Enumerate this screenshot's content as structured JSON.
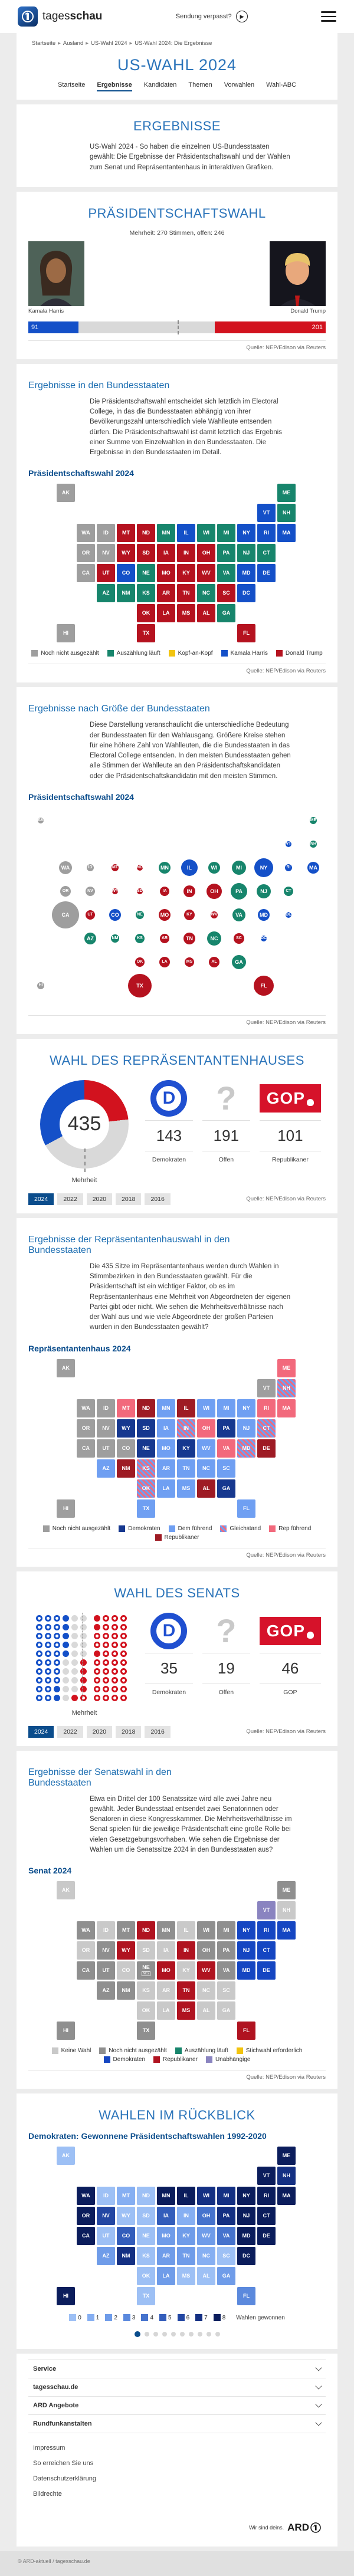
{
  "colors": {
    "accent_blue": "#0b4d8c",
    "heading_blue": "#2b74ba",
    "subheading_blue": "#1b6db1",
    "harris_blue": "#1450c8",
    "trump_red": "#d2121e",
    "open_gray": "#d9d9d9",
    "dem_logo_blue": "#1f4fd0",
    "gop_red": "#d6122a"
  },
  "header": {
    "brand_regular": "tages",
    "brand_bold": "schau",
    "sendung": "Sendung verpasst?",
    "breadcrumb": [
      "Startseite",
      "Ausland",
      "US-Wahl 2024",
      "US-Wahl 2024: Die Ergebnisse"
    ],
    "title": "US-WAHL 2024",
    "nav": [
      {
        "label": "Startseite",
        "active": false
      },
      {
        "label": "Ergebnisse",
        "active": true
      },
      {
        "label": "Kandidaten",
        "active": false
      },
      {
        "label": "Themen",
        "active": false
      },
      {
        "label": "Vorwahlen",
        "active": false
      },
      {
        "label": "Wahl-ABC",
        "active": false
      }
    ]
  },
  "intro": {
    "title": "ERGEBNISSE",
    "text": "US-Wahl 2024 - So haben die einzelnen US-Bundesstaaten gewählt: Die Ergebnisse der Präsidentschaftswahl und der Wahlen zum Senat und Repräsentantenhaus in interaktiven Grafiken."
  },
  "president": {
    "title": "PRÄSIDENTSCHAFTSWAHL",
    "majority_note": "Mehrheit: 270 Stimmen, offen: 246",
    "harris_name": "Kamala Harris",
    "trump_name": "Donald Trump",
    "source": "Quelle: NEP/Edison via Reuters"
  },
  "states_section": {
    "heading": "Ergebnisse in den Bundesstaaten",
    "text": "Die Präsidentschaftswahl entscheidet sich letztlich im Electoral College, in das die Bundesstaaten abhängig von ihrer Bevölkerungszahl unterschiedlich viele Wahlleute entsenden dürfen. Die Präsidentschaftswahl ist damit letztlich das Ergebnis einer Summe von Einzelwahlen in den Bundesstaaten. Die Ergebnisse in den Bundesstaaten im Detail.",
    "chart_title": "Präsidentschaftswahl 2024",
    "source": "Quelle: NEP/Edison via Reuters"
  },
  "bubble_section": {
    "heading": "Ergebnisse nach Größe der Bundesstaaten",
    "text": "Diese Darstellung veranschaulicht die unterschiedliche Bedeutung der Bundesstaaten für den Wahlausgang. Größere Kreise stehen für eine höhere Zahl von Wahlleuten, die die Bundesstaaten in das Electoral College entsenden. In den meisten Bundesstaaten gehen alle Stimmen der Wahlleute an den Präsidentschaftskandidaten oder die Präsidentschaftskandidatin mit den meisten Stimmen.",
    "chart_title": "Präsidentschaftswahl 2024",
    "source": "Quelle: NEP/Edison via Reuters"
  },
  "house": {
    "title": "WAHL DES REPRÄSENTANTENHAUSES",
    "majority_label": "Mehrheit",
    "years": [
      "2024",
      "2022",
      "2020",
      "2018",
      "2016"
    ],
    "active_year": "2024",
    "source": "Quelle: NEP/Edison via Reuters"
  },
  "house_map_section": {
    "heading": "Ergebnisse der Repräsentantenhauswahl in den Bundesstaaten",
    "text": "Die 435 Sitze im Repräsentantenhaus werden durch Wahlen in Stimmbezirken in den Bundesstaaten gewählt. Für die Präsidentschaft ist ein wichtiger Faktor, ob es im Repräsentantenhaus eine Mehrheit von Abgeordneten der eigenen Partei gibt oder nicht. Wie sehen die Mehrheitsverhältnisse nach der Wahl aus und wie viele Abgeordnete der großen Parteien wurden in den Bundesstaaten gewählt?",
    "chart_title": "Repräsentantenhaus 2024",
    "source": "Quelle: NEP/Edison via Reuters"
  },
  "senate": {
    "title": "WAHL DES SENATS",
    "majority_label": "Mehrheit",
    "years": [
      "2024",
      "2022",
      "2020",
      "2018",
      "2016"
    ],
    "active_year": "2024",
    "source": "Quelle: NEP/Edison via Reuters"
  },
  "senate_map_section": {
    "heading": "Ergebnisse der Senatswahl in den Bundesstaaten",
    "text": "Etwa ein Drittel der 100 Senatssitze wird alle zwei Jahre neu gewählt. Jeder Bundesstaat entsendet zwei Senatorinnen oder Senatoren in diese Kongresskammer. Die Mehrheitsverhältnisse im Senat spielen für die jeweilige Präsidentschaft eine große Rolle bei vielen Gesetzgebungsvorhaben. Wie sehen die Ergebnisse der Wahlen um die Senatssitze 2024 in den Bundesstaaten aus?",
    "chart_title": "Senat 2024",
    "source": "Quelle: NEP/Edison via Reuters"
  },
  "retro": {
    "title": "WAHLEN IM RÜCKBLICK",
    "chart_title": "Demokraten: Gewonnene Präsidentschaftswahlen 1992-2020",
    "legend_label": "Wahlen gewonnen",
    "pagination": {
      "count": 10,
      "active": 0
    }
  },
  "footer": {
    "accordions": [
      "Service",
      "tagesschau.de",
      "ARD Angebote",
      "Rundfunkanstalten"
    ],
    "links": [
      "Impressum",
      "So erreichen Sie uns",
      "Datenschutzerklärung",
      "Bildrechte"
    ],
    "slogan": "Wir sind deins.",
    "ard": "ARD",
    "copyright": "© ARD-aktuell / tagesschau.de"
  },
  "chart_data": [
    {
      "id": "president-bar",
      "type": "bar",
      "title": "Präsidentschaftswahl Electoral College",
      "series": [
        {
          "name": "Kamala Harris",
          "value": 91,
          "color": "#1450c8"
        },
        {
          "name": "offen",
          "value": 246,
          "color": "#d9d9d9"
        },
        {
          "name": "Donald Trump",
          "value": 201,
          "color": "#d2121e"
        }
      ],
      "majority": 270,
      "total": 538
    },
    {
      "id": "president-map",
      "type": "map",
      "title": "Präsidentschaftswahl 2024",
      "colors": {
        "open": "#9e9e9e",
        "counting": "#17856c",
        "tie": "#f2c40f",
        "harris": "#1450c8",
        "trump": "#b5121f"
      },
      "legend": [
        {
          "key": "open",
          "label": "Noch nicht ausgezählt"
        },
        {
          "key": "counting",
          "label": "Auszählung läuft"
        },
        {
          "key": "tie",
          "label": "Kopf-an-Kopf"
        },
        {
          "key": "harris",
          "label": "Kamala Harris"
        },
        {
          "key": "trump",
          "label": "Donald Trump"
        }
      ],
      "states": {
        "WA": "open",
        "OR": "open",
        "ID": "open",
        "NV": "open",
        "CA": "open",
        "AK": "open",
        "HI": "open",
        "MN": "counting",
        "WI": "counting",
        "MI": "counting",
        "PA": "counting",
        "NE": "counting",
        "KS": "counting",
        "AZ": "counting",
        "NM": "counting",
        "VA": "counting",
        "NC": "counting",
        "GA": "counting",
        "ME": "counting",
        "NH": "counting",
        "CT": "counting",
        "NJ": "counting",
        "CO": "harris",
        "IL": "harris",
        "NY": "harris",
        "VT": "harris",
        "MA": "harris",
        "RI": "harris",
        "DE": "harris",
        "MD": "harris",
        "DC": "harris",
        "MT": "trump",
        "ND": "trump",
        "SD": "trump",
        "WY": "trump",
        "UT": "trump",
        "IA": "trump",
        "MO": "trump",
        "OK": "trump",
        "AR": "trump",
        "TX": "trump",
        "LA": "trump",
        "MS": "trump",
        "AL": "trump",
        "TN": "trump",
        "KY": "trump",
        "IN": "trump",
        "OH": "trump",
        "WV": "trump",
        "SC": "trump",
        "FL": "trump"
      }
    },
    {
      "id": "president-cartogram",
      "type": "bubble-map",
      "title": "Präsidentschaftswahl 2024",
      "colors": {
        "open": "#9e9e9e",
        "counting": "#17856c",
        "tie": "#f2c40f",
        "harris": "#1450c8",
        "trump": "#b5121f"
      },
      "legend": [
        {
          "key": "open",
          "label": "Noch nicht ausgezählt"
        },
        {
          "key": "counting",
          "label": "Auszählung läuft"
        },
        {
          "key": "tie",
          "label": "Kopf-an-Kopf"
        },
        {
          "key": "harris",
          "label": "Kamala Harris"
        },
        {
          "key": "trump",
          "label": "Donald Trump"
        }
      ],
      "electoral_votes": {
        "AL": 9,
        "AK": 3,
        "AZ": 11,
        "AR": 6,
        "CA": 54,
        "CO": 10,
        "CT": 7,
        "DE": 3,
        "DC": 3,
        "FL": 30,
        "GA": 16,
        "HI": 4,
        "ID": 4,
        "IL": 19,
        "IN": 11,
        "IA": 6,
        "KS": 6,
        "KY": 8,
        "LA": 8,
        "ME": 4,
        "MD": 10,
        "MA": 11,
        "MI": 15,
        "MN": 10,
        "MS": 6,
        "MO": 10,
        "MT": 4,
        "NE": 5,
        "NV": 6,
        "NH": 4,
        "NJ": 14,
        "NM": 5,
        "NY": 28,
        "NC": 16,
        "ND": 3,
        "OH": 17,
        "OK": 7,
        "OR": 8,
        "PA": 19,
        "RI": 4,
        "SC": 9,
        "SD": 3,
        "TN": 11,
        "TX": 40,
        "UT": 6,
        "VT": 3,
        "VA": 13,
        "WA": 12,
        "WV": 4,
        "WI": 10,
        "WY": 3
      },
      "states": {
        "WA": "open",
        "OR": "open",
        "ID": "open",
        "NV": "open",
        "CA": "open",
        "AK": "open",
        "HI": "open",
        "MN": "counting",
        "WI": "counting",
        "MI": "counting",
        "PA": "counting",
        "NE": "counting",
        "KS": "counting",
        "AZ": "counting",
        "NM": "counting",
        "VA": "counting",
        "NC": "counting",
        "GA": "counting",
        "ME": "counting",
        "NH": "counting",
        "CT": "counting",
        "NJ": "counting",
        "CO": "harris",
        "IL": "harris",
        "NY": "harris",
        "VT": "harris",
        "MA": "harris",
        "RI": "harris",
        "DE": "harris",
        "MD": "harris",
        "DC": "harris",
        "MT": "trump",
        "ND": "trump",
        "SD": "trump",
        "WY": "trump",
        "UT": "trump",
        "IA": "trump",
        "MO": "trump",
        "OK": "trump",
        "AR": "trump",
        "TX": "trump",
        "LA": "trump",
        "MS": "trump",
        "AL": "trump",
        "TN": "trump",
        "KY": "trump",
        "IN": "trump",
        "OH": "trump",
        "WV": "trump",
        "SC": "trump",
        "FL": "trump"
      }
    },
    {
      "id": "house-donut",
      "type": "donut",
      "total": 435,
      "majority": 218,
      "segments": [
        {
          "name": "Demokraten",
          "value": 143,
          "color": "#1450c8",
          "icon": "dem-logo"
        },
        {
          "name": "Offen",
          "value": 191,
          "color": "#d9d9d9",
          "icon": "question-mark"
        },
        {
          "name": "Republikaner",
          "value": 101,
          "color": "#d2121e",
          "icon": "gop-logo"
        }
      ]
    },
    {
      "id": "house-map",
      "type": "map",
      "title": "Repräsentantenhaus 2024",
      "colors": {
        "open": "#9e9e9e",
        "dem": "#16388f",
        "dem_lead": "#6f9ff2",
        "tie": "striped",
        "rep_lead": "#f2697c",
        "rep": "#9e1b24"
      },
      "legend": [
        {
          "key": "open",
          "label": "Noch nicht ausgezählt"
        },
        {
          "key": "dem",
          "label": "Demokraten"
        },
        {
          "key": "dem_lead",
          "label": "Dem führend"
        },
        {
          "key": "tie",
          "label": "Gleichstand"
        },
        {
          "key": "rep_lead",
          "label": "Rep führend"
        },
        {
          "key": "rep",
          "label": "Republikaner"
        }
      ],
      "states": {
        "WA": "open",
        "OR": "open",
        "ID": "open",
        "CA": "open",
        "NV": "open",
        "UT": "open",
        "CO": "open",
        "AK": "open",
        "HI": "open",
        "VT": "open",
        "WY": "dem",
        "SD": "dem",
        "NE": "dem",
        "PA": "dem",
        "KY": "dem",
        "GA": "dem",
        "MN": "dem_lead",
        "WI": "dem_lead",
        "MI": "dem_lead",
        "IA": "dem_lead",
        "MO": "dem_lead",
        "AR": "dem_lead",
        "TX": "dem_lead",
        "LA": "dem_lead",
        "MS": "dem_lead",
        "TN": "dem_lead",
        "WV": "dem_lead",
        "NC": "dem_lead",
        "SC": "dem_lead",
        "FL": "dem_lead",
        "NY": "dem_lead",
        "NJ": "dem_lead",
        "AZ": "dem_lead",
        "IN": "tie",
        "KS": "tie",
        "OK": "tie",
        "CT": "tie",
        "NH": "tie",
        "MD": "tie",
        "MT": "rep_lead",
        "OH": "rep_lead",
        "VA": "rep_lead",
        "ME": "rep_lead",
        "MA": "rep_lead",
        "RI": "rep_lead",
        "ND": "rep",
        "IL": "rep",
        "NM": "rep",
        "AL": "rep",
        "DE": "rep"
      }
    },
    {
      "id": "senate-dots",
      "type": "dot-matrix",
      "seats": {
        "dem": 35,
        "open": 19,
        "gop": 46
      },
      "rows": [
        "bbbBggRrrr",
        "bbbBggRrrr",
        "bbbBggrrrr",
        "bbbBggrrrr",
        "bbbBggRrrr",
        "bbbggRrrrr",
        "bbbggRrrrr",
        "bbbggRrrrr",
        "bbBggRrrrr",
        "bbBgRrrrrr"
      ],
      "dot_colors": {
        "b": "#1450c8",
        "B": "#1450c8",
        "g": "#d9d9d9",
        "G": "#bdbdbd",
        "r": "#d2121e",
        "R": "#d2121e"
      },
      "stats": [
        {
          "name": "Demokraten",
          "value": 35,
          "icon": "dem-logo"
        },
        {
          "name": "Offen",
          "value": 19,
          "icon": "question-mark"
        },
        {
          "name": "GOP",
          "value": 46,
          "icon": "gop-logo"
        }
      ]
    },
    {
      "id": "senate-map",
      "type": "map",
      "title": "Senat 2024",
      "colors": {
        "none": "#c9c9c9",
        "open": "#8f8f8f",
        "counting": "#17856c",
        "runoff": "#f2c40f",
        "dem": "#1546c2",
        "rep": "#b01320",
        "ind": "#8a84c0"
      },
      "legend": [
        {
          "key": "none",
          "label": "Keine Wahl"
        },
        {
          "key": "open",
          "label": "Noch nicht ausgezählt"
        },
        {
          "key": "counting",
          "label": "Auszählung läuft"
        },
        {
          "key": "runoff",
          "label": "Stichwahl erforderlich"
        },
        {
          "key": "dem",
          "label": "Demokraten"
        },
        {
          "key": "rep",
          "label": "Republikaner"
        },
        {
          "key": "ind",
          "label": "Unabhängige"
        }
      ],
      "sub_labels": {
        "NE": "NE2"
      },
      "states": {
        "OR": "none",
        "ID": "none",
        "CO": "none",
        "KS": "none",
        "OK": "none",
        "AR": "none",
        "LA": "none",
        "AL": "none",
        "GA": "none",
        "SC": "none",
        "NC": "none",
        "KY": "none",
        "IL": "none",
        "IA": "none",
        "SD": "none",
        "NH": "none",
        "AK": "none",
        "WA": "open",
        "CA": "open",
        "NV": "open",
        "MT": "open",
        "UT": "open",
        "AZ": "open",
        "NM": "open",
        "TX": "open",
        "MN": "open",
        "WI": "open",
        "MI": "open",
        "OH": "open",
        "PA": "open",
        "VA": "open",
        "ME": "open",
        "HI": "open",
        "NE": "open",
        "NY": "dem",
        "MA": "dem",
        "CT": "dem",
        "RI": "dem",
        "DE": "dem",
        "MD": "dem",
        "NJ": "dem",
        "ND": "rep",
        "WY": "rep",
        "MO": "rep",
        "IN": "rep",
        "WV": "rep",
        "MS": "rep",
        "TN": "rep",
        "FL": "rep",
        "VT": "ind"
      }
    },
    {
      "id": "retro-map",
      "type": "choropleth",
      "title": "Demokraten: Gewonnene Präsidentschaftswahlen 1992-2020",
      "scale": [
        "#9dc0f5",
        "#86aff2",
        "#6f9ce9",
        "#5b89dd",
        "#4673cd",
        "#335dbb",
        "#2347a3",
        "#143083",
        "#0b1d5c"
      ],
      "legend_values": [
        0,
        1,
        2,
        3,
        4,
        5,
        6,
        7,
        8
      ],
      "legend_label": "Wahlen gewonnen",
      "values": {
        "AL": 0,
        "AK": 0,
        "AZ": 2,
        "AR": 2,
        "CA": 8,
        "CO": 5,
        "CT": 8,
        "DE": 8,
        "DC": 8,
        "FL": 3,
        "GA": 2,
        "HI": 8,
        "ID": 0,
        "IL": 8,
        "IN": 1,
        "IA": 5,
        "KS": 0,
        "KY": 2,
        "LA": 2,
        "ME": 8,
        "MD": 8,
        "MA": 8,
        "MI": 7,
        "MN": 8,
        "MS": 0,
        "MO": 2,
        "MT": 1,
        "NE": 0,
        "NV": 6,
        "NH": 7,
        "NJ": 8,
        "NM": 7,
        "NY": 8,
        "NC": 1,
        "ND": 0,
        "OH": 4,
        "OK": 0,
        "OR": 8,
        "PA": 7,
        "RI": 8,
        "SC": 0,
        "SD": 0,
        "TN": 2,
        "TX": 0,
        "UT": 0,
        "VT": 8,
        "VA": 4,
        "WA": 8,
        "WV": 2,
        "WI": 7,
        "WY": 0
      }
    }
  ]
}
